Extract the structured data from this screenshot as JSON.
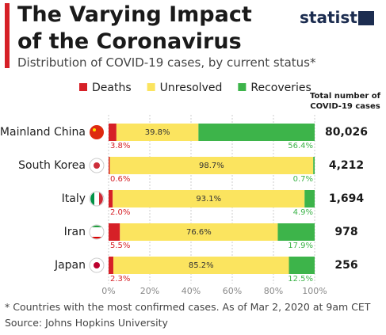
{
  "logo": "statista",
  "chart_data": {
    "type": "stacked_bar_horizontal",
    "title": "The Varying Impact of the Coronavirus",
    "subtitle": "Distribution of COVID-19 cases, by current status*",
    "categories": [
      "Mainland China",
      "South Korea",
      "Italy",
      "Iran",
      "Japan"
    ],
    "series": [
      {
        "name": "Deaths",
        "color": "#d62027",
        "values": [
          3.8,
          0.6,
          2.0,
          5.5,
          2.3
        ],
        "value_labels": [
          "3.8%",
          "0.6%",
          "2.0%",
          "5.5%",
          "2.3%"
        ]
      },
      {
        "name": "Unresolved",
        "color": "#fbe45f",
        "values": [
          39.8,
          98.7,
          93.1,
          76.6,
          85.2
        ],
        "value_labels": [
          "39.8%",
          "98.7%",
          "93.1%",
          "76.6%",
          "85.2%"
        ]
      },
      {
        "name": "Recoveries",
        "color": "#3db44a",
        "values": [
          56.4,
          0.7,
          4.9,
          17.9,
          12.5
        ],
        "value_labels": [
          "56.4%",
          "0.7%",
          "4.9%",
          "17.9%",
          "12.5%"
        ]
      }
    ],
    "xlim": [
      0,
      100
    ],
    "xticks": [
      {
        "value": 0,
        "label": "0%"
      },
      {
        "value": 20,
        "label": "20%"
      },
      {
        "value": 40,
        "label": "40%"
      },
      {
        "value": 60,
        "label": "60%"
      },
      {
        "value": 80,
        "label": "80%"
      },
      {
        "value": 100,
        "label": "100%"
      }
    ],
    "grid": true,
    "totals": {
      "title": "Total number of COVID-19 cases",
      "values": [
        80026,
        4212,
        1694,
        978,
        256
      ],
      "value_labels": [
        "80,026",
        "4,212",
        "1,694",
        "978",
        "256"
      ]
    },
    "note": "* Countries with the most confirmed cases. As of Mar 2, 2020 at 9am CET",
    "source": "Source: Johns Hopkins University"
  }
}
